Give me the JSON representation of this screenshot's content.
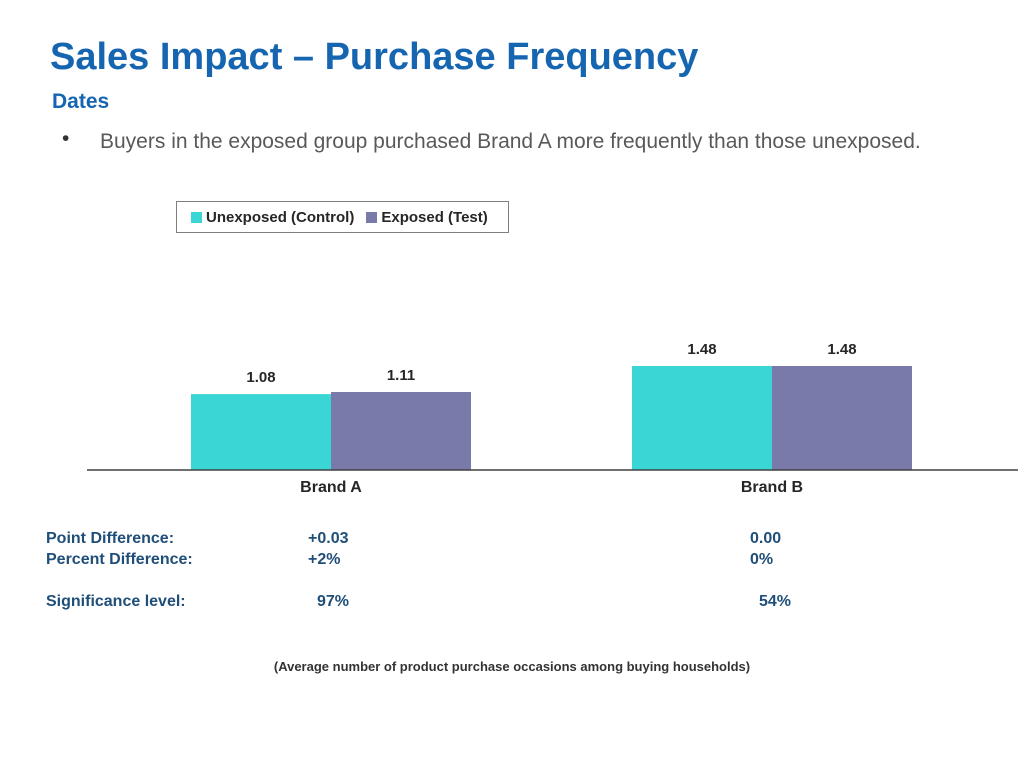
{
  "slide": {
    "title": "Sales Impact – Purchase Frequency",
    "subtitle": "Dates",
    "bullet_symbol": "•",
    "bullet": "Buyers in the exposed group purchased Brand A more frequently than those unexposed."
  },
  "chart_data": {
    "type": "bar",
    "categories": [
      "Brand A",
      "Brand B"
    ],
    "series": [
      {
        "name": "Unexposed (Control)",
        "values": [
          1.08,
          1.48
        ],
        "labels": [
          "1.08",
          "1.48"
        ],
        "color": "#3ad6d6"
      },
      {
        "name": "Exposed (Test)",
        "values": [
          1.11,
          1.48
        ],
        "labels": [
          "1.11",
          "1.48"
        ],
        "color": "#7a7aaa"
      }
    ],
    "ylim": [
      0,
      1.6
    ],
    "grid": false,
    "legend_position": "top-left",
    "title": "",
    "xlabel": "",
    "ylabel": ""
  },
  "stats": {
    "labels": {
      "point": "Point Difference:",
      "percent": "Percent Difference:",
      "significance": "Significance level:"
    },
    "brand_a": {
      "point": "+0.03",
      "percent": "+2%",
      "significance": "97%"
    },
    "brand_b": {
      "point": "0.00",
      "percent": "0%",
      "significance": "54%"
    }
  },
  "footnote": "(Average number of product purchase occasions among buying households)"
}
